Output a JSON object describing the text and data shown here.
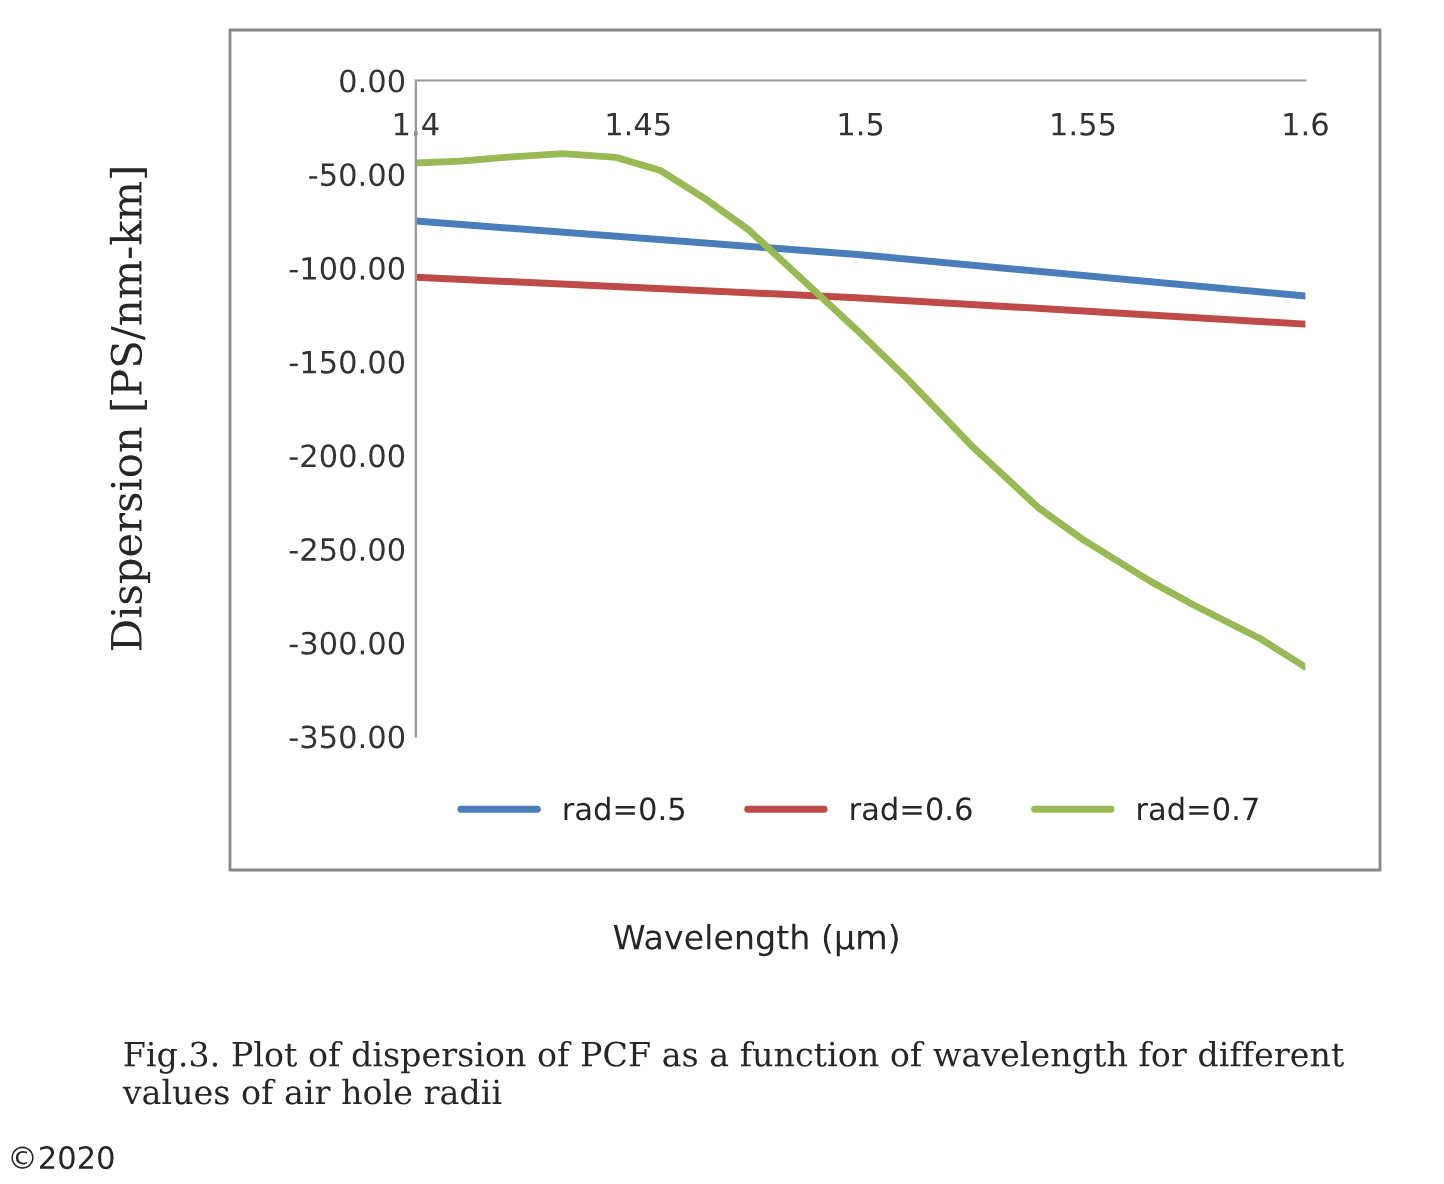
{
  "chart_data": {
    "type": "line",
    "ylabel": "Dispersion [PS/nm-km]",
    "xlim": [
      1.4,
      1.6
    ],
    "xticks": [
      1.4,
      1.45,
      1.5,
      1.55,
      1.6
    ],
    "ylim": [
      -350,
      0
    ],
    "yticks": [
      {
        "value": 0,
        "label": "0.00"
      },
      {
        "value": -50,
        "label": "-50.00"
      },
      {
        "value": -100,
        "label": "-100.00"
      },
      {
        "value": -150,
        "label": "-150.00"
      },
      {
        "value": -200,
        "label": "-200.00"
      },
      {
        "value": -250,
        "label": "-250.00"
      },
      {
        "value": -300,
        "label": "-300.00"
      },
      {
        "value": -350,
        "label": "-350.00"
      }
    ],
    "grid": false,
    "legend": "bottom",
    "series": [
      {
        "name": "rad=0.5",
        "color": "#4a7ebb",
        "x": [
          1.4,
          1.5,
          1.6
        ],
        "values": [
          -75,
          -93,
          -115
        ]
      },
      {
        "name": "rad=0.6",
        "color": "#be4b48",
        "x": [
          1.4,
          1.5,
          1.6
        ],
        "values": [
          -105,
          -116,
          -130
        ]
      },
      {
        "name": "rad=0.7",
        "color": "#98b954",
        "x": [
          1.4,
          1.41,
          1.42,
          1.433,
          1.445,
          1.455,
          1.465,
          1.475,
          1.49,
          1.5,
          1.51,
          1.525,
          1.54,
          1.55,
          1.565,
          1.575,
          1.59,
          1.6
        ],
        "values": [
          -44,
          -43,
          -41,
          -39,
          -41,
          -48,
          -63,
          -80,
          -113,
          -135,
          -158,
          -195,
          -228,
          -245,
          -267,
          -280,
          -298,
          -313
        ]
      }
    ],
    "annotations": [
      "Wavelength (μm)",
      "Fig.3. Plot of dispersion of PCF as a function of wavelength for different values of air hole radii",
      "©2020"
    ]
  }
}
